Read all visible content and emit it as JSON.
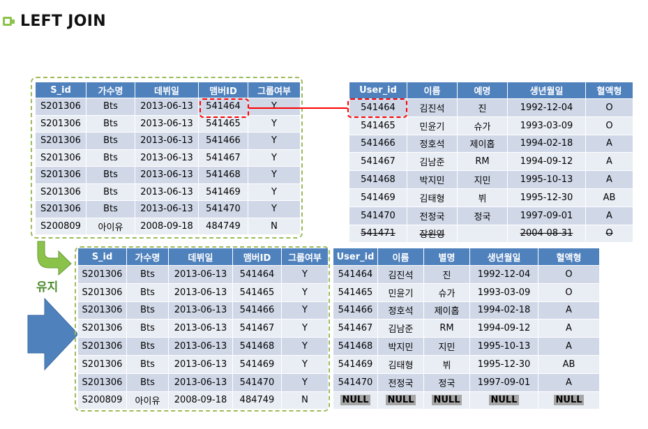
{
  "title": "LEFT JOIN",
  "keep_label": "유지",
  "colors": {
    "header": "#4f81bd",
    "row_odd": "#d0d8e8",
    "row_even": "#e9edf4",
    "green_dash": "#9bbb59",
    "red": "#ff0000",
    "arrow_blue": "#4f81bd",
    "arrow_green": "#8bc34a"
  },
  "icons": {
    "title_bullet": "square-bullet-icon",
    "bend_arrow": "bent-arrow-icon",
    "big_arrow": "right-arrow-icon"
  },
  "singer_table": {
    "headers": [
      "S_id",
      "가수명",
      "데뷔일",
      "맴버ID",
      "그룹여부"
    ],
    "rows": [
      [
        "S201306",
        "Bts",
        "2013-06-13",
        "541464",
        "Y"
      ],
      [
        "S201306",
        "Bts",
        "2013-06-13",
        "541465",
        "Y"
      ],
      [
        "S201306",
        "Bts",
        "2013-06-13",
        "541466",
        "Y"
      ],
      [
        "S201306",
        "Bts",
        "2013-06-13",
        "541467",
        "Y"
      ],
      [
        "S201306",
        "Bts",
        "2013-06-13",
        "541468",
        "Y"
      ],
      [
        "S201306",
        "Bts",
        "2013-06-13",
        "541469",
        "Y"
      ],
      [
        "S201306",
        "Bts",
        "2013-06-13",
        "541470",
        "Y"
      ],
      [
        "S200809",
        "아이유",
        "2008-09-18",
        "484749",
        "N"
      ]
    ]
  },
  "user_table": {
    "headers": [
      "User_id",
      "이름",
      "예명",
      "생년월일",
      "혈액형"
    ],
    "rows": [
      [
        "541464",
        "김진석",
        "진",
        "1992-12-04",
        "O"
      ],
      [
        "541465",
        "민윤기",
        "슈가",
        "1993-03-09",
        "O"
      ],
      [
        "541466",
        "정호석",
        "제이홉",
        "1994-02-18",
        "A"
      ],
      [
        "541467",
        "김남준",
        "RM",
        "1994-09-12",
        "A"
      ],
      [
        "541468",
        "박지민",
        "지민",
        "1995-10-13",
        "A"
      ],
      [
        "541469",
        "김태형",
        "뷔",
        "1995-12-30",
        "AB"
      ],
      [
        "541470",
        "전정국",
        "정국",
        "1997-09-01",
        "A"
      ],
      [
        "541471",
        "장원영",
        "",
        "2004-08-31",
        "O"
      ]
    ]
  },
  "result_left": {
    "headers": [
      "S_id",
      "가수명",
      "데뷔일",
      "맴버ID",
      "그룹여부"
    ],
    "rows": [
      [
        "S201306",
        "Bts",
        "2013-06-13",
        "541464",
        "Y"
      ],
      [
        "S201306",
        "Bts",
        "2013-06-13",
        "541465",
        "Y"
      ],
      [
        "S201306",
        "Bts",
        "2013-06-13",
        "541466",
        "Y"
      ],
      [
        "S201306",
        "Bts",
        "2013-06-13",
        "541467",
        "Y"
      ],
      [
        "S201306",
        "Bts",
        "2013-06-13",
        "541468",
        "Y"
      ],
      [
        "S201306",
        "Bts",
        "2013-06-13",
        "541469",
        "Y"
      ],
      [
        "S201306",
        "Bts",
        "2013-06-13",
        "541470",
        "Y"
      ],
      [
        "S200809",
        "아이유",
        "2008-09-18",
        "484749",
        "N"
      ]
    ]
  },
  "result_right": {
    "headers": [
      "User_id",
      "이름",
      "별명",
      "생년월일",
      "혈액형"
    ],
    "rows": [
      [
        "541464",
        "김진석",
        "진",
        "1992-12-04",
        "O"
      ],
      [
        "541465",
        "민윤기",
        "슈가",
        "1993-03-09",
        "O"
      ],
      [
        "541466",
        "정호석",
        "제이홉",
        "1994-02-18",
        "A"
      ],
      [
        "541467",
        "김남준",
        "RM",
        "1994-09-12",
        "A"
      ],
      [
        "541468",
        "박지민",
        "지민",
        "1995-10-13",
        "A"
      ],
      [
        "541469",
        "김태형",
        "뷔",
        "1995-12-30",
        "AB"
      ],
      [
        "541470",
        "전정국",
        "정국",
        "1997-09-01",
        "A"
      ],
      [
        "NULL",
        "NULL",
        "NULL",
        "NULL",
        "NULL"
      ]
    ]
  }
}
